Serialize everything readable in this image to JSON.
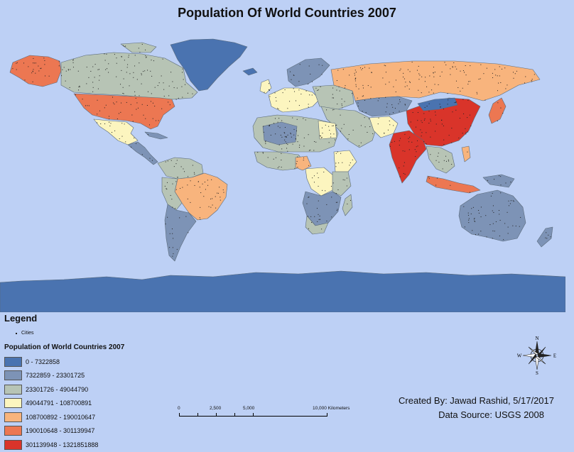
{
  "title": "Population Of World Countries 2007",
  "legend": {
    "heading": "Legend",
    "cities_label": "Cities",
    "layer_title": "Population of World Countries 2007",
    "classes": [
      {
        "label": "0 - 7322858",
        "color": "#4a73b0"
      },
      {
        "label": "7322859 - 23301725",
        "color": "#7d93b6"
      },
      {
        "label": "23301726 - 49044790",
        "color": "#b7c4b5"
      },
      {
        "label": "49044791 - 108700891",
        "color": "#fcf5bf"
      },
      {
        "label": "108700892 - 190010647",
        "color": "#f8b47d"
      },
      {
        "label": "190010648 - 301139947",
        "color": "#ec7752"
      },
      {
        "label": "301139948 - 1321851888",
        "color": "#d9342a"
      }
    ]
  },
  "scale_bar": {
    "labels": [
      "0",
      "2,500",
      "5,000",
      "10,000 Kilometers"
    ]
  },
  "credits": {
    "created_by": "Created By: Jawad Rashid, 5/17/2017",
    "data_source": "Data Source: USGS 2008"
  },
  "north_arrow": {
    "n": "N",
    "s": "S",
    "e": "E",
    "w": "W"
  },
  "colors": {
    "ocean": "#bdd0f5",
    "city_dot": "#222222",
    "border": "#5a6a7a"
  }
}
